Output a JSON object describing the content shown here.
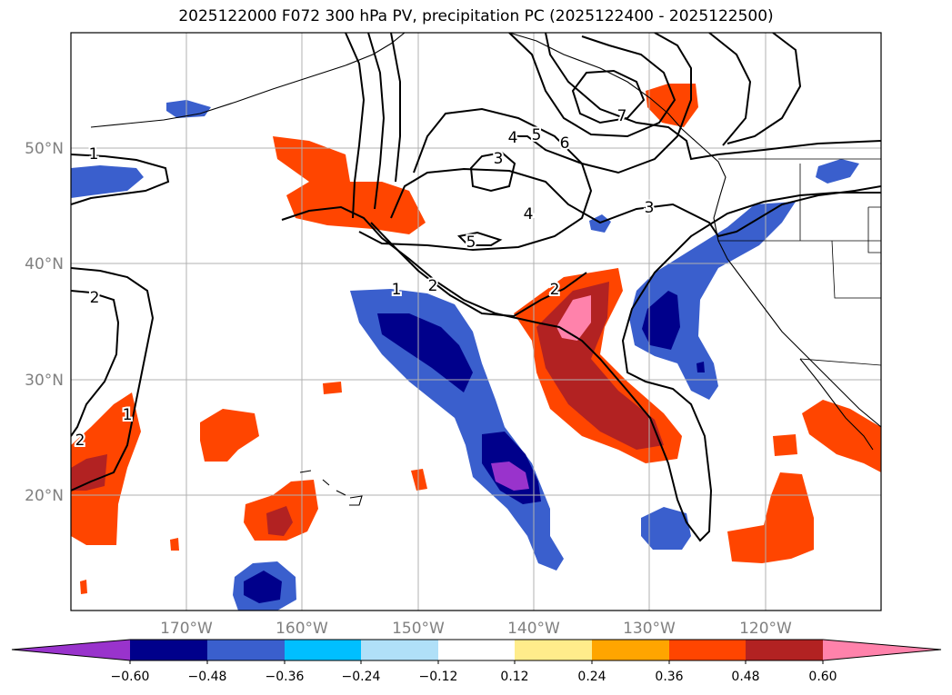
{
  "title": "2025122000 F072 300 hPa PV, precipitation PC (2025122400 - 2025122500)",
  "map": {
    "lat_labels": [
      "50°N",
      "40°N",
      "30°N",
      "20°N"
    ],
    "lon_labels": [
      "170°W",
      "160°W",
      "150°W",
      "140°W",
      "130°W",
      "120°W"
    ]
  },
  "pv_contour_labels": [
    "1",
    "1",
    "1",
    "2",
    "2",
    "2",
    "2",
    "3",
    "3",
    "4",
    "4",
    "5",
    "5",
    "6",
    "7"
  ],
  "colorbar": {
    "tick_labels": [
      "−0.60",
      "−0.48",
      "−0.36",
      "−0.24",
      "−0.12",
      "0.12",
      "0.24",
      "0.36",
      "0.48",
      "0.60"
    ],
    "colors": [
      "#9933cc",
      "#00008b",
      "#3a5fcd",
      "#00bfff",
      "#b0e0f8",
      "#ffffff",
      "#ffec8b",
      "#ffa500",
      "#ff4500",
      "#b22222",
      "#ff82ab"
    ]
  }
}
